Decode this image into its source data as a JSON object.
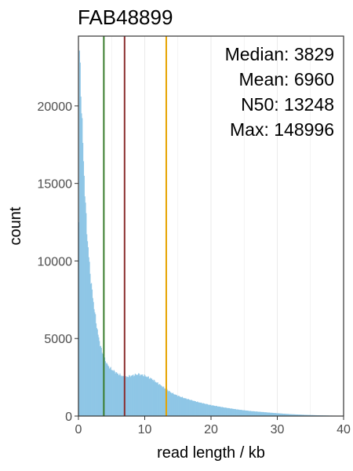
{
  "chart_data": {
    "type": "bar",
    "title": "FAB48899",
    "xlabel": "read length / kb",
    "ylabel": "count",
    "xlim": [
      0,
      40
    ],
    "ylim": [
      0,
      24500
    ],
    "x_ticks": [
      0,
      10,
      20,
      30,
      40
    ],
    "y_ticks": [
      0,
      5000,
      10000,
      15000,
      20000
    ],
    "x_tick_labels": [
      "0",
      "10",
      "20",
      "30",
      "40"
    ],
    "y_tick_labels": [
      "0",
      "5000",
      "10000",
      "15000",
      "20000"
    ],
    "grid": "vertical lines at major and minor x ticks",
    "bar_color": "#8ec6e6",
    "histogram_profile": {
      "x_kb": [
        0,
        0.1,
        0.2,
        0.3,
        0.4,
        0.5,
        0.6,
        0.7,
        0.8,
        1.0,
        1.2,
        1.5,
        1.8,
        2.0,
        2.5,
        3.0,
        3.5,
        4.0,
        4.5,
        5.0,
        6.0,
        7.0,
        8.0,
        9.0,
        10.0,
        11.0,
        12.0,
        13.0,
        14.0,
        15.0,
        16.0,
        18.0,
        20.0,
        22.0,
        24.0,
        26.0,
        28.0,
        30.0,
        32.0,
        34.0,
        36.0,
        38.0,
        40.0
      ],
      "count": [
        1000,
        24000,
        23000,
        21500,
        20500,
        19500,
        18000,
        17000,
        16000,
        14000,
        12300,
        10500,
        9000,
        8200,
        6500,
        5100,
        4200,
        3600,
        3200,
        3000,
        2700,
        2500,
        2600,
        2700,
        2600,
        2400,
        2100,
        1800,
        1500,
        1300,
        1150,
        900,
        700,
        550,
        420,
        320,
        250,
        180,
        120,
        80,
        50,
        30,
        20
      ]
    },
    "vlines": [
      {
        "name": "Median",
        "value_kb": 3.829,
        "color": "#3a7d2e"
      },
      {
        "name": "Mean",
        "value_kb": 6.96,
        "color": "#8b2e2e"
      },
      {
        "name": "N50",
        "value_kb": 13.248,
        "color": "#e6a300"
      }
    ],
    "stats": [
      {
        "label": "Median:",
        "value": "3829"
      },
      {
        "label": "Mean:",
        "value": "6960"
      },
      {
        "label": "N50:",
        "value": "13248"
      },
      {
        "label": "Max:",
        "value": "148996"
      }
    ],
    "legend": "none"
  }
}
